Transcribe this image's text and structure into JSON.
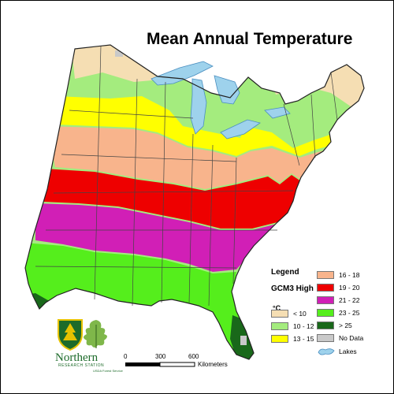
{
  "map": {
    "title": "Mean Annual Temperature"
  },
  "legend": {
    "heading": "Legend",
    "model": "GCM3 High",
    "unit": "°C",
    "items": [
      {
        "label": "< 10",
        "color": "#f5deb3"
      },
      {
        "label": "10 - 12",
        "color": "#a4ec7e"
      },
      {
        "label": "13 - 15",
        "color": "#ffff00"
      },
      {
        "label": "16 - 18",
        "color": "#f8b48c"
      },
      {
        "label": "19 - 20",
        "color": "#ee0000"
      },
      {
        "label": "21 - 22",
        "color": "#d11fb6"
      },
      {
        "label": "23 - 25",
        "color": "#55ee1c"
      },
      {
        "label": "> 25",
        "color": "#19681a"
      },
      {
        "label": "No Data",
        "color": "#c9c9c9"
      },
      {
        "label": "Lakes",
        "color": "#9ed2ec"
      }
    ]
  },
  "scale_bar": {
    "ticks": [
      "0",
      "300",
      "600"
    ],
    "unit": "Kilometers"
  },
  "branding": {
    "station_name": "Northern",
    "station_subtitle": "RESEARCH STATION",
    "agency": "USDA Forest Service"
  }
}
